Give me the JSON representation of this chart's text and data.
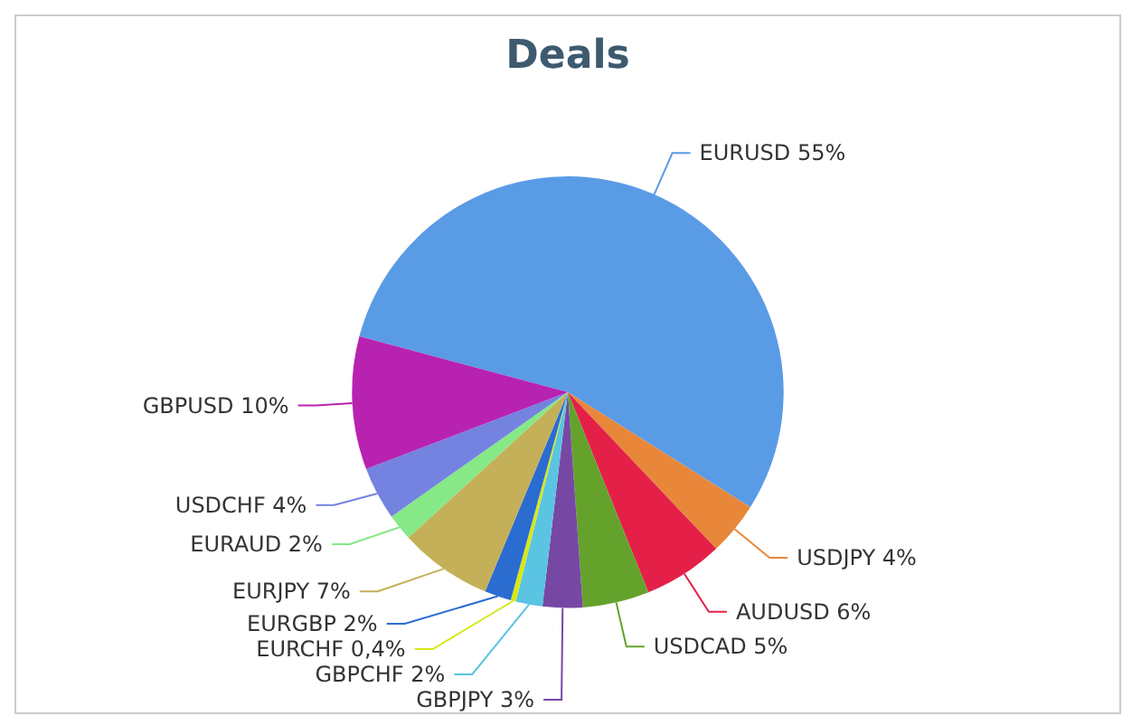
{
  "chart_data": {
    "type": "pie",
    "title": "Deals",
    "categories": [
      "EURUSD",
      "USDJPY",
      "AUDUSD",
      "USDCAD",
      "GBPJPY",
      "GBPCHF",
      "EURCHF",
      "EURGBP",
      "EURJPY",
      "EURAUD",
      "USDCHF",
      "GBPUSD"
    ],
    "values": [
      55,
      4,
      6,
      5,
      3,
      2,
      0.4,
      2,
      7,
      2,
      4,
      10
    ],
    "value_labels": [
      "55%",
      "4%",
      "6%",
      "5%",
      "3%",
      "2%",
      "0,4%",
      "2%",
      "7%",
      "2%",
      "4%",
      "10%"
    ],
    "colors": [
      "#5a9be6",
      "#e8873a",
      "#e42048",
      "#64a22c",
      "#7648a4",
      "#5ac4e2",
      "#d8e818",
      "#2a6cd0",
      "#c4b058",
      "#86e886",
      "#7482e0",
      "#b822b0"
    ]
  }
}
